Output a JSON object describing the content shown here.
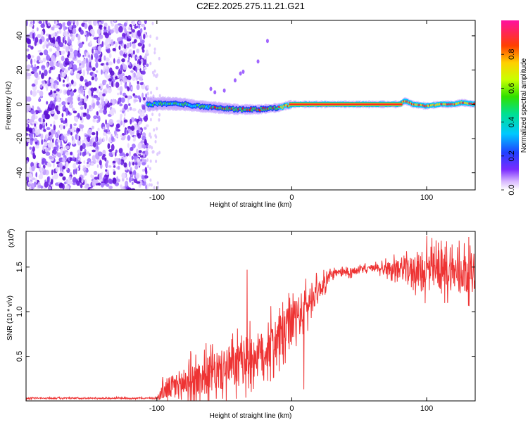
{
  "title": "C2E2.2025.275.11.21.G21",
  "chart_data": [
    {
      "type": "heatmap",
      "title": "C2E2.2025.275.11.21.G21",
      "xlabel": "Height of straight line (km)",
      "ylabel": "Frequency (Hz)",
      "xlim": [
        -197,
        136
      ],
      "ylim": [
        -50,
        49
      ],
      "xticks": [
        -100,
        0,
        100
      ],
      "xtick_labels": [
        "-100",
        "0",
        "100"
      ],
      "yticks": [
        -40,
        -20,
        0,
        20,
        40
      ],
      "ytick_labels": [
        "-40",
        "-20",
        "0",
        "20",
        "40"
      ],
      "noise_region_x": [
        -197,
        -107
      ],
      "signal_track": [
        {
          "x": -107,
          "f": 0
        },
        {
          "x": -95,
          "f": 0.5
        },
        {
          "x": -80,
          "f": 0
        },
        {
          "x": -70,
          "f": -1
        },
        {
          "x": -55,
          "f": -2
        },
        {
          "x": -40,
          "f": -3
        },
        {
          "x": -25,
          "f": -3
        },
        {
          "x": -10,
          "f": -2
        },
        {
          "x": 0,
          "f": 0
        },
        {
          "x": 20,
          "f": 0
        },
        {
          "x": 60,
          "f": 0
        },
        {
          "x": 80,
          "f": 0
        },
        {
          "x": 84,
          "f": 2
        },
        {
          "x": 90,
          "f": 0
        },
        {
          "x": 100,
          "f": -1
        },
        {
          "x": 110,
          "f": 0
        },
        {
          "x": 120,
          "f": 0
        },
        {
          "x": 126,
          "f": 1
        },
        {
          "x": 136,
          "f": 0
        }
      ],
      "colorbar": {
        "label": "Normalized spectral amplitude",
        "range": [
          0,
          1
        ],
        "ticks": [
          0.0,
          0.2,
          0.4,
          0.6,
          0.8
        ],
        "tick_labels": [
          "0.0",
          "0.2",
          "0.4",
          "0.6",
          "0.8"
        ]
      }
    },
    {
      "type": "line",
      "series_name": "SNR",
      "xlabel": "Height of straight line (km)",
      "ylabel": "SNR (10 * v/v)",
      "y_multiplier_label": "(x10",
      "y_multiplier_exp": "4",
      "xlim": [
        -197,
        136
      ],
      "ylim": [
        0,
        1.9
      ],
      "xticks": [
        -100,
        0,
        100
      ],
      "xtick_labels": [
        "-100",
        "0",
        "100"
      ],
      "yticks": [
        0.5,
        1.0,
        1.5
      ],
      "ytick_labels": [
        "0.5",
        "1.0",
        "1.5"
      ],
      "color": "#ee3333",
      "envelope": [
        {
          "x": -197,
          "mean": 0.03,
          "spread": 0.01
        },
        {
          "x": -100,
          "mean": 0.03,
          "spread": 0.01
        },
        {
          "x": -95,
          "mean": 0.12,
          "spread": 0.15
        },
        {
          "x": -80,
          "mean": 0.2,
          "spread": 0.25
        },
        {
          "x": -60,
          "mean": 0.3,
          "spread": 0.3
        },
        {
          "x": -40,
          "mean": 0.4,
          "spread": 0.35
        },
        {
          "x": -20,
          "mean": 0.55,
          "spread": 0.35
        },
        {
          "x": 0,
          "mean": 0.85,
          "spread": 0.35
        },
        {
          "x": 10,
          "mean": 1.05,
          "spread": 0.3
        },
        {
          "x": 20,
          "mean": 1.25,
          "spread": 0.15
        },
        {
          "x": 30,
          "mean": 1.42,
          "spread": 0.07
        },
        {
          "x": 60,
          "mean": 1.49,
          "spread": 0.05
        },
        {
          "x": 80,
          "mean": 1.48,
          "spread": 0.15
        },
        {
          "x": 100,
          "mean": 1.45,
          "spread": 0.3
        },
        {
          "x": 136,
          "mean": 1.45,
          "spread": 0.3
        }
      ],
      "notable_points": [
        {
          "x": -33,
          "y": 1.47
        },
        {
          "x": 9,
          "y": 0.13
        },
        {
          "x": 100,
          "y": 1.85
        }
      ]
    }
  ]
}
